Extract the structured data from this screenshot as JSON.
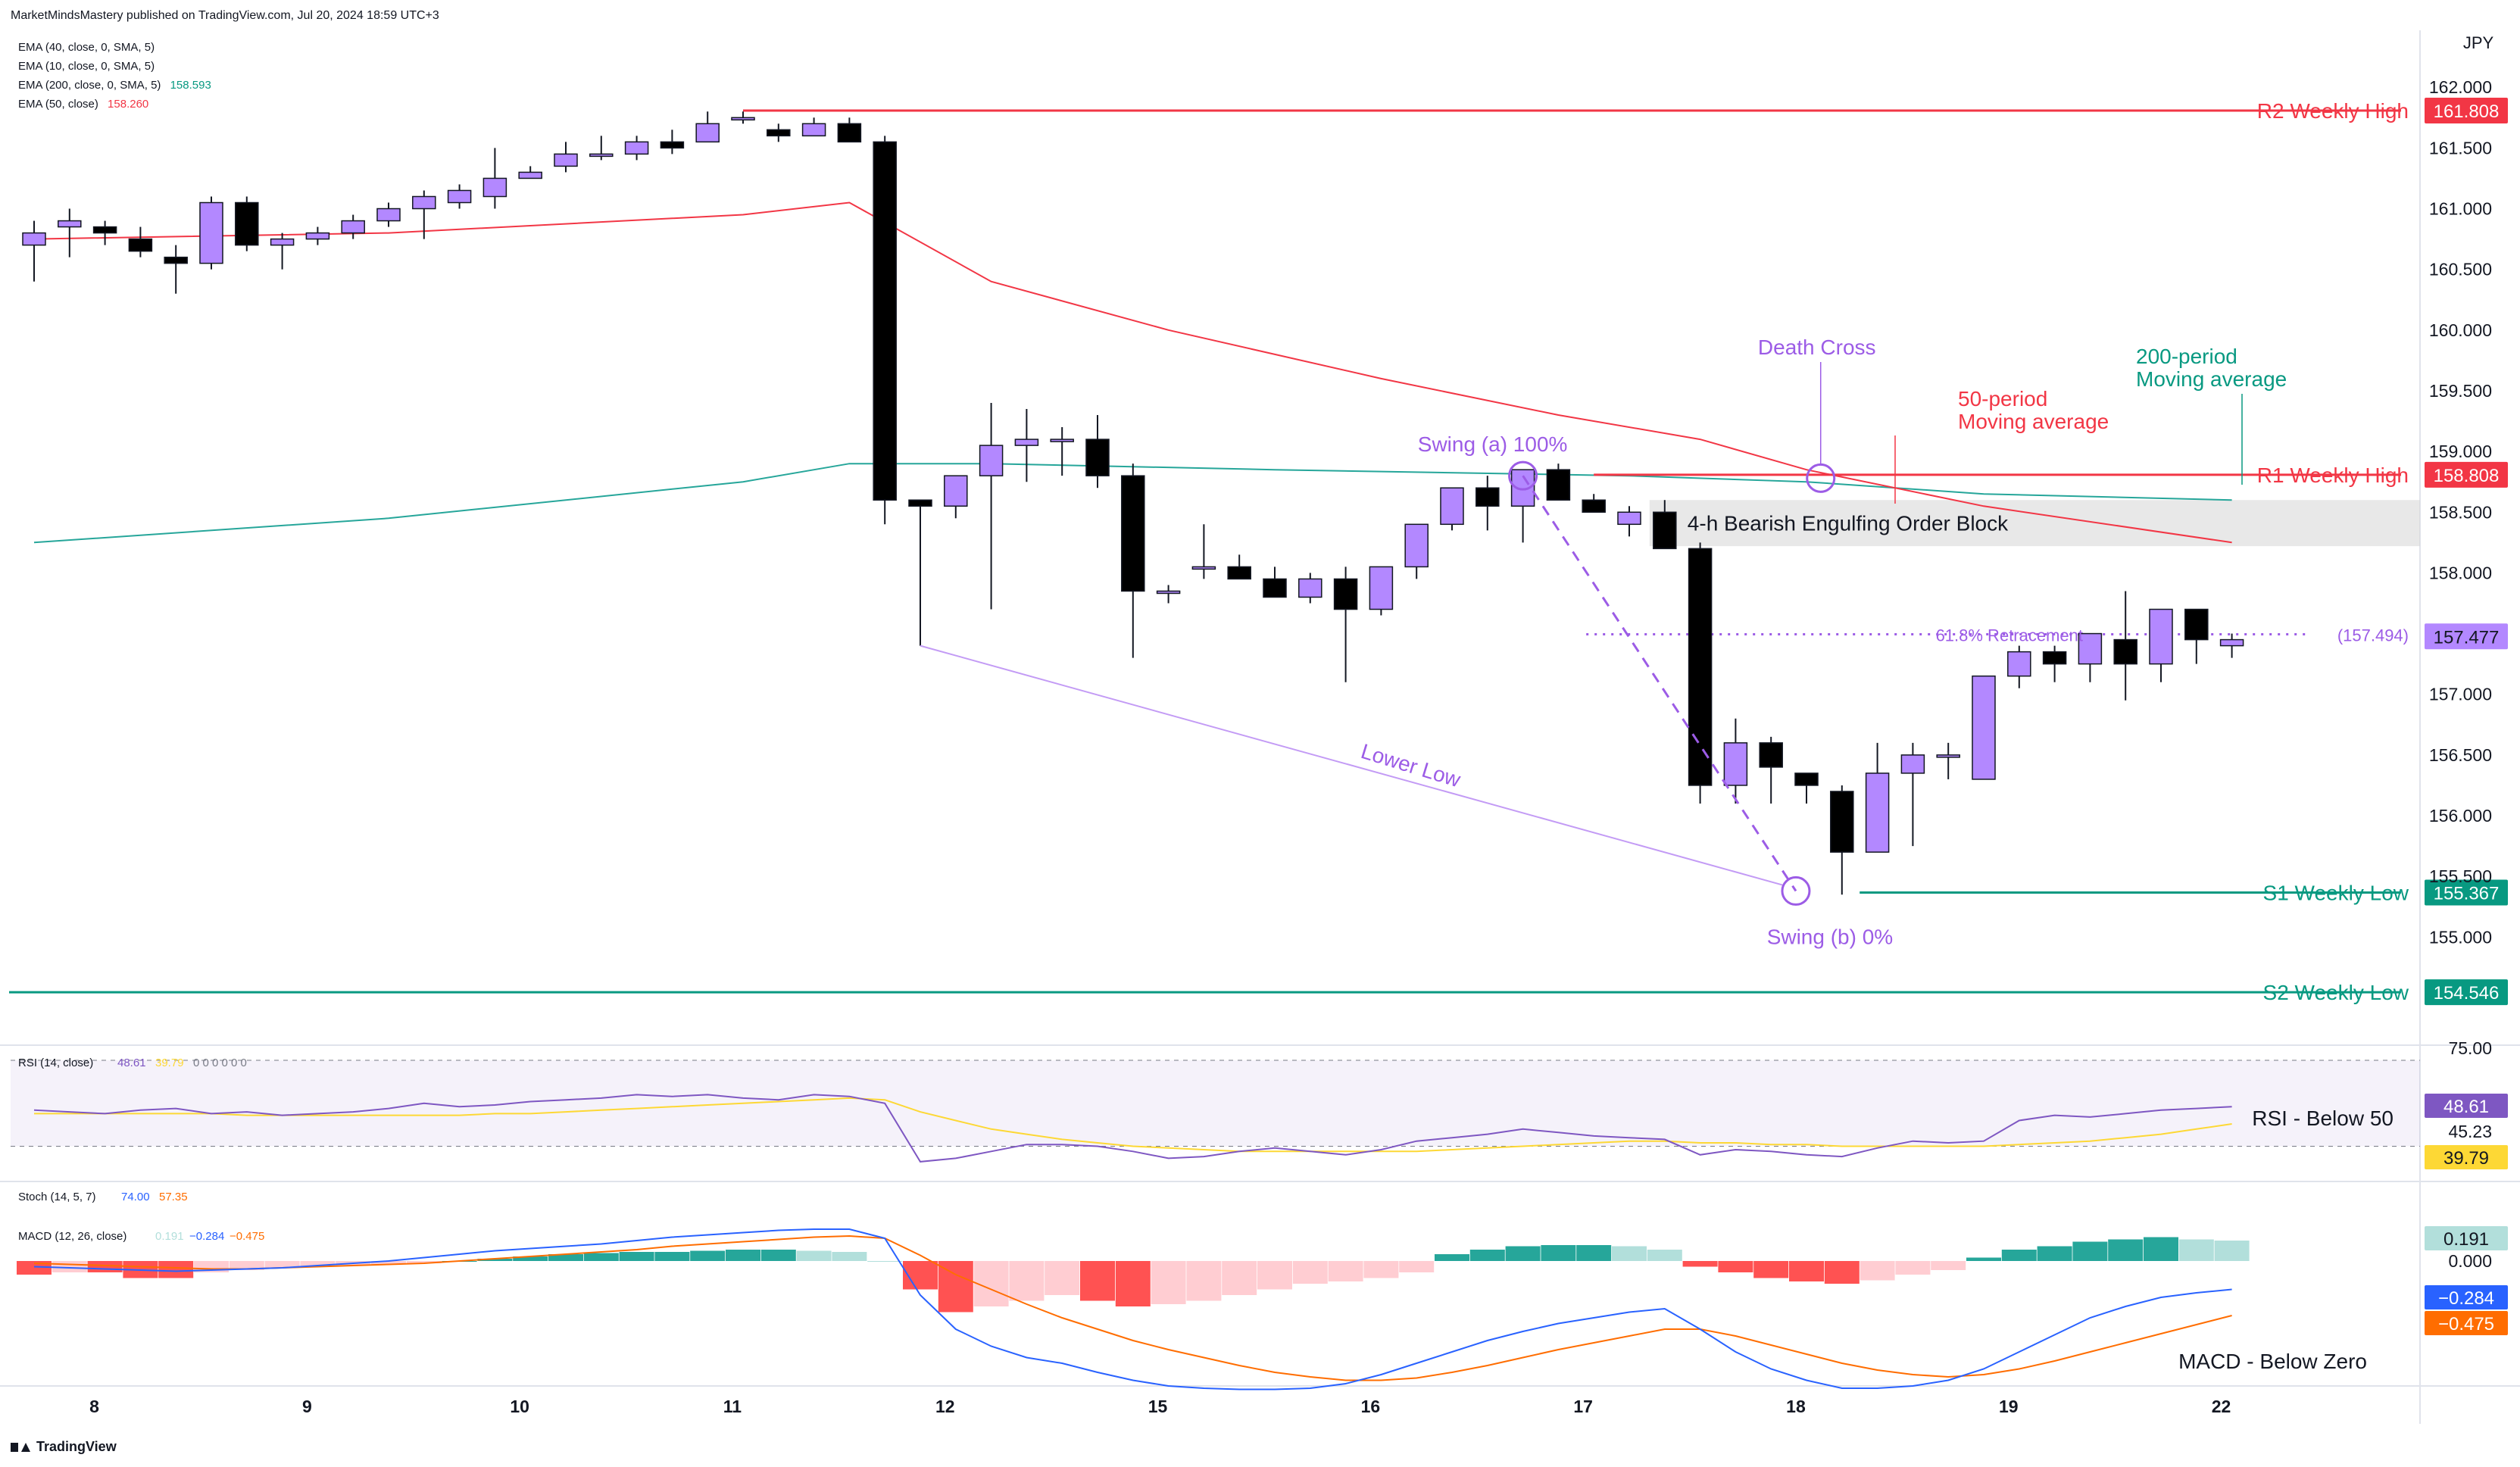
{
  "header": "MarketMindsMastery published on TradingView.com, Jul 20, 2024 18:59 UTC+3",
  "currency": "JPY",
  "legend": [
    {
      "text": "EMA (40, close, 0, SMA, 5)",
      "value": ""
    },
    {
      "text": "EMA (10, close, 0, SMA, 5)",
      "value": ""
    },
    {
      "text": "EMA (200, close, 0, SMA, 5)",
      "value": "158.593",
      "color": "#26a69a"
    },
    {
      "text": "EMA (50, close)",
      "value": "158.260",
      "color": "#f23645"
    }
  ],
  "logo_text": "TradingView",
  "colors": {
    "bull": "#b388ff",
    "bear": "#000000",
    "ema50": "#f23645",
    "ema200": "#26a69a",
    "annotation_purple": "#9c5ce6",
    "red": "#f23645",
    "teal": "#089981"
  },
  "chart_data": {
    "type": "candlestick",
    "symbol_currency": "JPY",
    "x_axis_labels": [
      "8",
      "9",
      "10",
      "11",
      "12",
      "15",
      "16",
      "17",
      "18",
      "19",
      "22"
    ],
    "y_axis_ticks": [
      "162.000",
      "161.500",
      "161.000",
      "160.500",
      "160.000",
      "159.500",
      "159.000",
      "158.500",
      "158.000",
      "157.000",
      "156.500",
      "156.000",
      "155.500",
      "155.000"
    ],
    "ylim": [
      154.3,
      162.3
    ],
    "candles": [
      [
        160.7,
        160.9,
        160.4,
        160.8
      ],
      [
        160.85,
        161.0,
        160.6,
        160.9
      ],
      [
        160.85,
        160.9,
        160.7,
        160.8
      ],
      [
        160.75,
        160.85,
        160.6,
        160.65
      ],
      [
        160.6,
        160.7,
        160.3,
        160.55
      ],
      [
        160.55,
        161.1,
        160.5,
        161.05
      ],
      [
        161.05,
        161.1,
        160.65,
        160.7
      ],
      [
        160.7,
        160.8,
        160.5,
        160.75
      ],
      [
        160.75,
        160.85,
        160.7,
        160.8
      ],
      [
        160.8,
        160.95,
        160.75,
        160.9
      ],
      [
        160.9,
        161.05,
        160.85,
        161.0
      ],
      [
        161.0,
        161.15,
        160.75,
        161.1
      ],
      [
        161.05,
        161.2,
        161.0,
        161.15
      ],
      [
        161.1,
        161.5,
        161.0,
        161.25
      ],
      [
        161.25,
        161.35,
        161.25,
        161.3
      ],
      [
        161.35,
        161.55,
        161.3,
        161.45
      ],
      [
        161.45,
        161.6,
        161.4,
        161.45
      ],
      [
        161.45,
        161.6,
        161.4,
        161.55
      ],
      [
        161.55,
        161.65,
        161.45,
        161.5
      ],
      [
        161.55,
        161.8,
        161.55,
        161.7
      ],
      [
        161.75,
        161.8,
        161.7,
        161.75
      ],
      [
        161.65,
        161.7,
        161.55,
        161.6
      ],
      [
        161.6,
        161.75,
        161.6,
        161.7
      ],
      [
        161.7,
        161.75,
        161.55,
        161.55
      ],
      [
        161.55,
        161.6,
        158.4,
        158.6
      ],
      [
        158.6,
        158.6,
        157.4,
        158.55
      ],
      [
        158.55,
        158.8,
        158.45,
        158.8
      ],
      [
        158.8,
        159.4,
        157.7,
        159.05
      ],
      [
        159.05,
        159.35,
        158.75,
        159.1
      ],
      [
        159.1,
        159.2,
        158.8,
        159.1
      ],
      [
        159.1,
        159.3,
        158.7,
        158.8
      ],
      [
        158.8,
        158.9,
        157.3,
        157.85
      ],
      [
        157.85,
        157.9,
        157.75,
        157.85
      ],
      [
        158.05,
        158.4,
        157.95,
        158.05
      ],
      [
        158.05,
        158.15,
        157.95,
        157.95
      ],
      [
        157.95,
        158.05,
        157.8,
        157.8
      ],
      [
        157.8,
        158.0,
        157.75,
        157.95
      ],
      [
        157.95,
        158.05,
        157.1,
        157.7
      ],
      [
        157.7,
        158.05,
        157.65,
        158.05
      ],
      [
        158.05,
        158.4,
        157.95,
        158.4
      ],
      [
        158.4,
        158.7,
        158.35,
        158.7
      ],
      [
        158.7,
        158.8,
        158.35,
        158.55
      ],
      [
        158.55,
        158.85,
        158.25,
        158.85
      ],
      [
        158.85,
        158.9,
        158.6,
        158.6
      ],
      [
        158.6,
        158.65,
        158.5,
        158.5
      ],
      [
        158.4,
        158.55,
        158.3,
        158.5
      ],
      [
        158.5,
        158.6,
        158.2,
        158.2
      ],
      [
        158.2,
        158.25,
        156.1,
        156.25
      ],
      [
        156.25,
        156.8,
        156.1,
        156.6
      ],
      [
        156.6,
        156.65,
        156.1,
        156.4
      ],
      [
        156.35,
        156.35,
        156.1,
        156.25
      ],
      [
        156.2,
        156.25,
        155.35,
        155.7
      ],
      [
        155.7,
        156.6,
        155.7,
        156.35
      ],
      [
        156.35,
        156.6,
        155.75,
        156.5
      ],
      [
        156.5,
        156.6,
        156.3,
        156.5
      ],
      [
        156.3,
        157.15,
        156.3,
        157.15
      ],
      [
        157.15,
        157.4,
        157.05,
        157.35
      ],
      [
        157.35,
        157.4,
        157.1,
        157.25
      ],
      [
        157.25,
        157.5,
        157.1,
        157.5
      ],
      [
        157.45,
        157.85,
        156.95,
        157.25
      ],
      [
        157.25,
        157.7,
        157.1,
        157.7
      ],
      [
        157.7,
        157.7,
        157.25,
        157.45
      ],
      [
        157.4,
        157.5,
        157.3,
        157.45
      ]
    ],
    "ema50": [
      [
        0,
        160.75
      ],
      [
        10,
        160.8
      ],
      [
        20,
        160.95
      ],
      [
        23,
        161.05
      ],
      [
        27,
        160.4
      ],
      [
        32,
        160.0
      ],
      [
        38,
        159.6
      ],
      [
        43,
        159.3
      ],
      [
        47,
        159.1
      ],
      [
        50,
        158.85
      ],
      [
        55,
        158.55
      ],
      [
        62,
        158.25
      ]
    ],
    "ema200": [
      [
        0,
        158.25
      ],
      [
        10,
        158.45
      ],
      [
        20,
        158.75
      ],
      [
        23,
        158.9
      ],
      [
        27,
        158.9
      ],
      [
        35,
        158.85
      ],
      [
        45,
        158.8
      ],
      [
        50,
        158.75
      ],
      [
        55,
        158.65
      ],
      [
        62,
        158.6
      ]
    ],
    "levels": [
      {
        "label": "R2 Weekly High",
        "value": "161.808",
        "y": 161.808,
        "start": 20,
        "color": "#f23645"
      },
      {
        "label": "R1 Weekly High",
        "value": "158.808",
        "y": 158.808,
        "start": 44,
        "color": "#f23645"
      },
      {
        "label": "S1 Weekly Low",
        "value": "155.367",
        "y": 155.367,
        "start": 51.5,
        "color": "#089981"
      },
      {
        "label": "S2 Weekly Low",
        "value": "154.546",
        "y": 154.546,
        "start": -1,
        "color": "#089981"
      }
    ],
    "current_price": "157.477",
    "retracement": {
      "label": "61.8% Retracement",
      "value": "(157.494)",
      "y": 157.494
    },
    "order_block": {
      "label": "4-h Bearish Engulfing Order Block",
      "top": 158.6,
      "bottom": 158.22,
      "start": 46
    },
    "annotations": [
      {
        "text": "Swing (a) 100%"
      },
      {
        "text": "Swing (b) 0%"
      },
      {
        "text": "Death Cross"
      },
      {
        "text": "50-period"
      },
      {
        "text": "Moving average"
      },
      {
        "text": "200-period"
      },
      {
        "text": "Moving average"
      },
      {
        "text": "Lower Low"
      }
    ],
    "rsi": {
      "label": "RSI (14, close)",
      "value": "48.61",
      "ma_value": "39.79",
      "extra": "0 0 0 0 0 0",
      "axis_ticks": [
        "75.00",
        "45.23"
      ],
      "annotation": "RSI - Below 50",
      "values": [
        46,
        45,
        44,
        46,
        47,
        44,
        45,
        43,
        44,
        45,
        47,
        50,
        48,
        49,
        51,
        52,
        53,
        55,
        54,
        55,
        53,
        52,
        55,
        54,
        50,
        16,
        18,
        22,
        26,
        26,
        25,
        22,
        18,
        19,
        22,
        24,
        22,
        20,
        23,
        28,
        30,
        32,
        35,
        33,
        31,
        30,
        29,
        20,
        23,
        22,
        20,
        19,
        24,
        28,
        27,
        28,
        40,
        43,
        42,
        44,
        46,
        47,
        48
      ],
      "ma": [
        44,
        44,
        44,
        44,
        44,
        44,
        43,
        43,
        43,
        43,
        43,
        43,
        43,
        44,
        44,
        45,
        46,
        47,
        48,
        49,
        50,
        51,
        52,
        53,
        52,
        45,
        40,
        35,
        32,
        29,
        27,
        25,
        24,
        23,
        22,
        22,
        22,
        22,
        22,
        22,
        23,
        24,
        25,
        26,
        27,
        28,
        28,
        27,
        27,
        26,
        26,
        25,
        25,
        25,
        25,
        25,
        26,
        27,
        28,
        30,
        32,
        35,
        38
      ]
    },
    "stoch": {
      "label": "Stoch (14, 5, 7)",
      "k": "74.00",
      "d": "57.35"
    },
    "macd": {
      "label": "MACD (12, 26, close)",
      "macd": "0.191",
      "signal": "−0.284",
      "hist": "−0.475",
      "axis_ticks": [
        "0.000"
      ],
      "annotation": "MACD - Below Zero",
      "hist_values": [
        -0.12,
        -0.1,
        -0.1,
        -0.15,
        -0.15,
        -0.1,
        -0.08,
        -0.06,
        -0.05,
        -0.04,
        -0.03,
        -0.02,
        0.0,
        0.02,
        0.04,
        0.06,
        0.07,
        0.08,
        0.08,
        0.09,
        0.1,
        0.1,
        0.09,
        0.08,
        0.0,
        -0.25,
        -0.45,
        -0.4,
        -0.35,
        -0.3,
        -0.35,
        -0.4,
        -0.38,
        -0.35,
        -0.3,
        -0.25,
        -0.2,
        -0.18,
        -0.15,
        -0.1,
        0.06,
        0.1,
        0.13,
        0.14,
        0.14,
        0.13,
        0.1,
        -0.05,
        -0.1,
        -0.15,
        -0.18,
        -0.2,
        -0.17,
        -0.12,
        -0.08,
        0.03,
        0.1,
        0.13,
        0.17,
        0.19,
        0.21,
        0.19,
        0.18
      ],
      "macd_line": [
        -0.05,
        -0.06,
        -0.07,
        -0.08,
        -0.09,
        -0.08,
        -0.07,
        -0.06,
        -0.04,
        -0.02,
        0.0,
        0.03,
        0.06,
        0.09,
        0.11,
        0.13,
        0.15,
        0.18,
        0.21,
        0.23,
        0.25,
        0.27,
        0.28,
        0.28,
        0.2,
        -0.3,
        -0.6,
        -0.75,
        -0.85,
        -0.9,
        -0.98,
        -1.05,
        -1.1,
        -1.12,
        -1.13,
        -1.13,
        -1.12,
        -1.08,
        -1.0,
        -0.9,
        -0.8,
        -0.7,
        -0.62,
        -0.55,
        -0.5,
        -0.45,
        -0.42,
        -0.6,
        -0.8,
        -0.95,
        -1.05,
        -1.12,
        -1.12,
        -1.1,
        -1.05,
        -0.95,
        -0.8,
        -0.65,
        -0.5,
        -0.4,
        -0.32,
        -0.28,
        -0.25
      ],
      "signal_line": [
        -0.02,
        -0.03,
        -0.04,
        -0.05,
        -0.06,
        -0.07,
        -0.07,
        -0.06,
        -0.05,
        -0.04,
        -0.03,
        -0.02,
        0.0,
        0.02,
        0.04,
        0.06,
        0.08,
        0.1,
        0.13,
        0.15,
        0.17,
        0.19,
        0.21,
        0.22,
        0.2,
        0.05,
        -0.12,
        -0.25,
        -0.38,
        -0.5,
        -0.6,
        -0.7,
        -0.78,
        -0.85,
        -0.92,
        -0.98,
        -1.02,
        -1.05,
        -1.05,
        -1.03,
        -0.98,
        -0.92,
        -0.85,
        -0.78,
        -0.72,
        -0.66,
        -0.6,
        -0.6,
        -0.66,
        -0.74,
        -0.82,
        -0.9,
        -0.96,
        -1.0,
        -1.02,
        -1.0,
        -0.95,
        -0.88,
        -0.8,
        -0.72,
        -0.64,
        -0.56,
        -0.48
      ]
    }
  }
}
